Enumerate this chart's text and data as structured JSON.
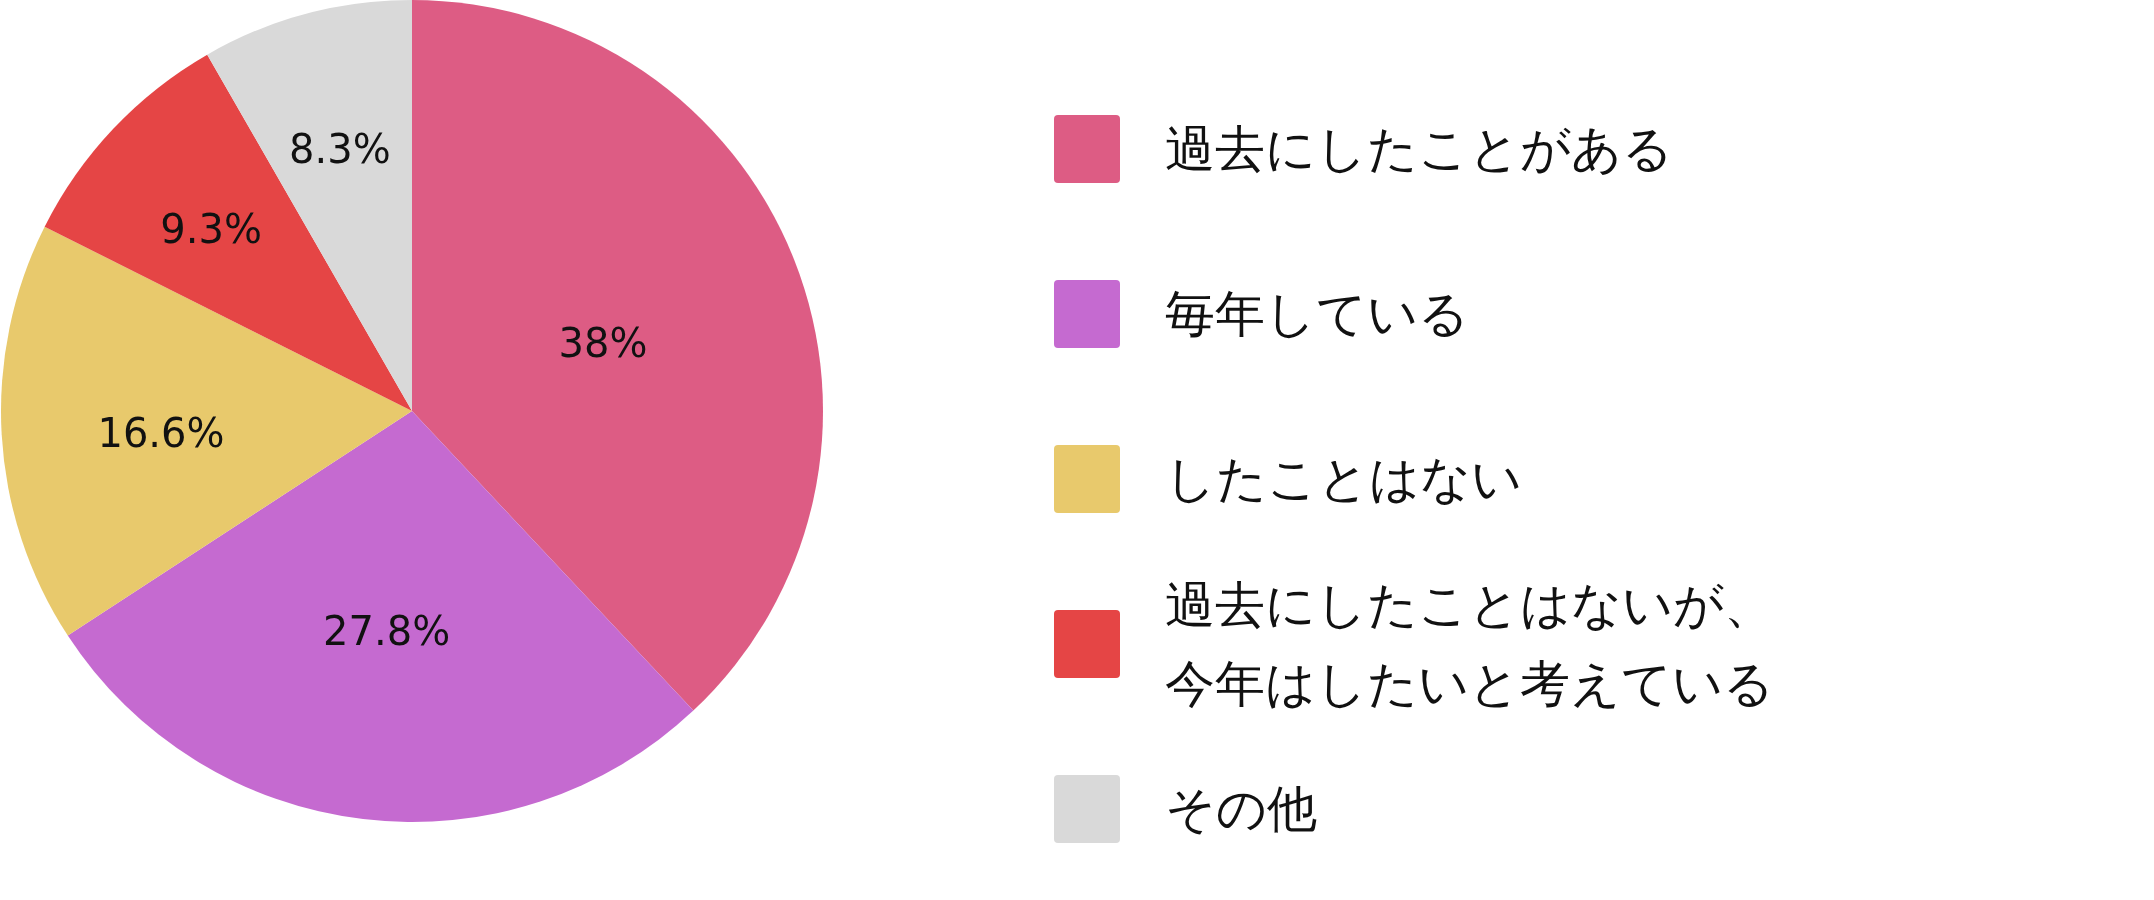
{
  "chart_data": {
    "type": "pie",
    "categories": [
      "過去にしたことがある",
      "毎年している",
      "したことはない",
      "過去にしたことはないが、今年はしたいと考えている",
      "その他"
    ],
    "values": [
      38,
      27.8,
      16.6,
      9.3,
      8.3
    ],
    "colors": [
      "#dd5c84",
      "#c56ad0",
      "#e8c96c",
      "#e54545",
      "#d9d9d9"
    ],
    "value_labels": [
      "38%",
      "27.8%",
      "16.6%",
      "9.3%",
      "8.3%"
    ],
    "legend": "right"
  }
}
